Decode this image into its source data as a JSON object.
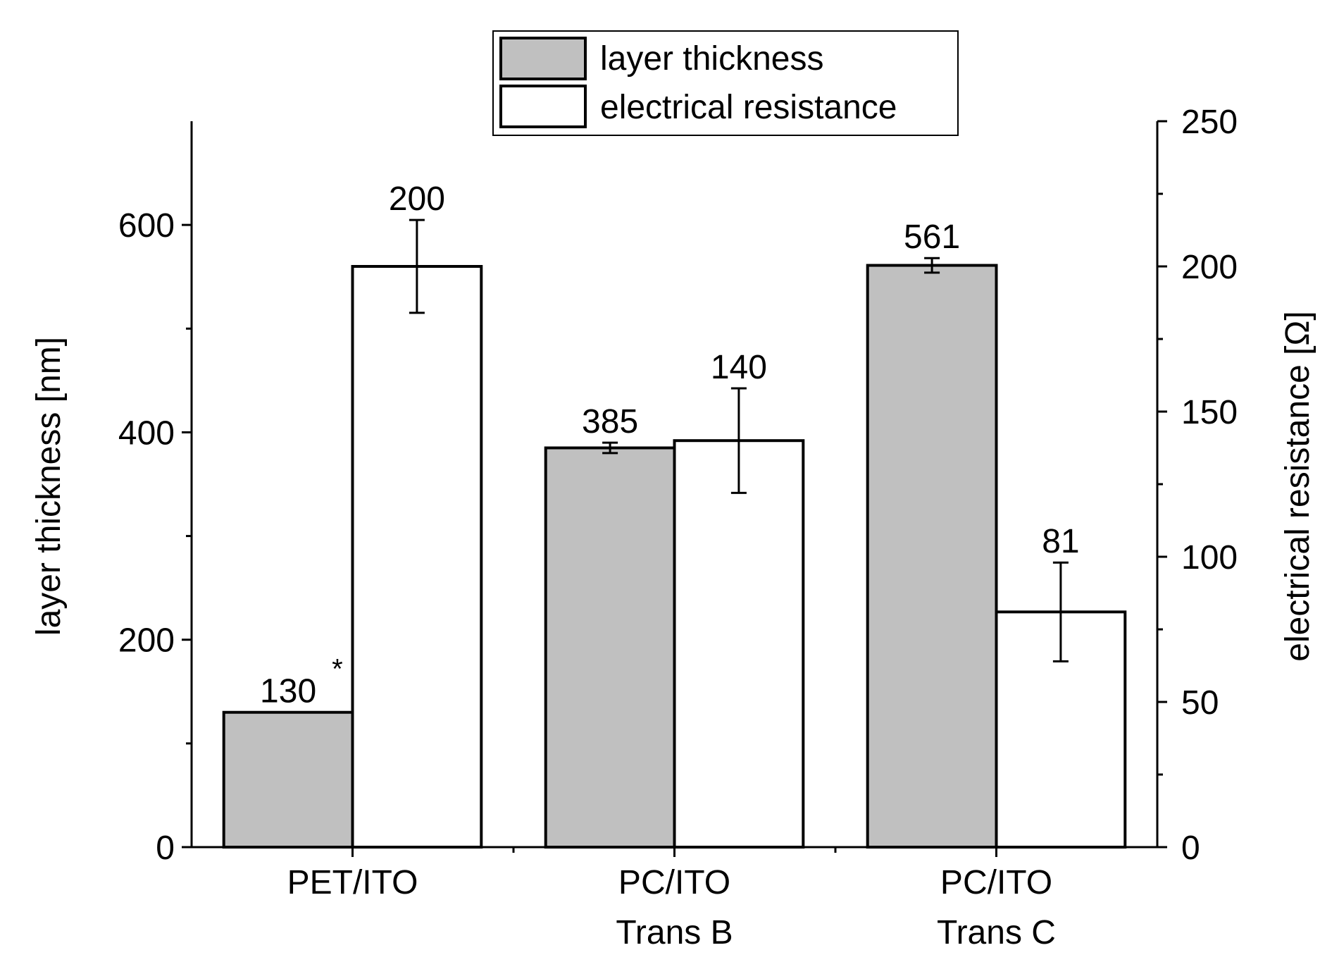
{
  "chart_data": {
    "type": "bar",
    "categories": [
      [
        "PET/ITO"
      ],
      [
        "PC/ITO",
        "Trans B"
      ],
      [
        "PC/ITO",
        "Trans C"
      ]
    ],
    "series": [
      {
        "name": "layer thickness",
        "axis": "left",
        "color": "#c0c0c0",
        "values": [
          130,
          385,
          561
        ],
        "errors": [
          null,
          5,
          7
        ],
        "labels": [
          "130",
          "385",
          "561"
        ],
        "label_suffix": [
          "*",
          "",
          ""
        ]
      },
      {
        "name": "electrical resistance",
        "axis": "right",
        "color": "#ffffff",
        "values": [
          200,
          140,
          81
        ],
        "errors": [
          16,
          18,
          17
        ],
        "labels": [
          "200",
          "140",
          "81"
        ],
        "label_suffix": [
          "",
          "",
          ""
        ]
      }
    ],
    "ylabel_left": "layer thickness [nm]",
    "ylabel_right": "electrical resistance [Ω]",
    "ylim_left": [
      0,
      700
    ],
    "ylim_right": [
      0,
      250
    ],
    "yticks_left": [
      0,
      200,
      400,
      600
    ],
    "yticks_right": [
      0,
      50,
      100,
      150,
      200,
      250
    ],
    "legend_position": "top-center",
    "grid": false
  }
}
